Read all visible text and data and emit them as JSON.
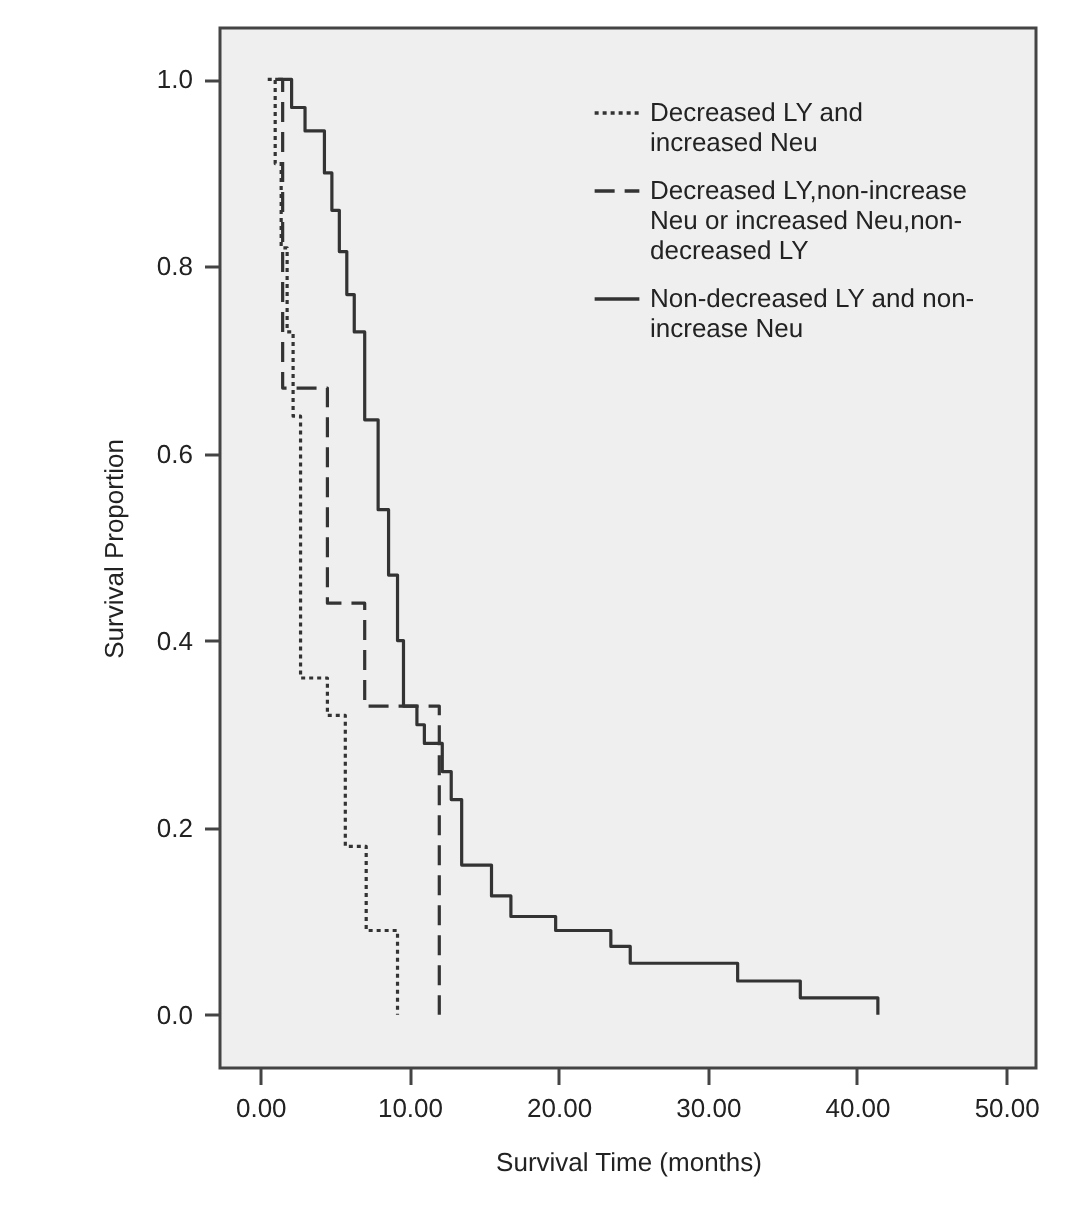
{
  "chart_data": {
    "type": "step",
    "xlabel": "Survival Time (months)",
    "ylabel": "Survival Proportion",
    "xlim": [
      -2.7,
      52
    ],
    "ylim": [
      -0.057,
      1.055
    ],
    "xticks": [
      {
        "value": 0,
        "label": "0.00"
      },
      {
        "value": 10,
        "label": "10.00"
      },
      {
        "value": 20,
        "label": "20.00"
      },
      {
        "value": 30,
        "label": "30.00"
      },
      {
        "value": 40,
        "label": "40.00"
      },
      {
        "value": 50,
        "label": "50.00"
      }
    ],
    "yticks": [
      {
        "value": 0,
        "label": "0.0"
      },
      0.2,
      0.4,
      0.6,
      0.8,
      {
        "value": 1,
        "label": "1.0"
      }
    ],
    "grid": false,
    "legend": "top right",
    "series": [
      {
        "name": "Decreased LY and increased Neu",
        "color": "#333333",
        "line_style": "dotted",
        "x": [
          0.5,
          1.0,
          1.4,
          1.8,
          2.2,
          2.7,
          4.5,
          5.7,
          7.1,
          9.2
        ],
        "values": [
          1.0,
          0.91,
          0.82,
          0.73,
          0.64,
          0.36,
          0.32,
          0.18,
          0.09,
          0.0
        ]
      },
      {
        "name": "Decreased LY,non-increase Neu or increased Neu,non-decreased LY",
        "color": "#333333",
        "line_style": "dashed",
        "x": [
          1.0,
          1.5,
          4.5,
          7.0,
          12.0
        ],
        "values": [
          1.0,
          0.67,
          0.44,
          0.33,
          0.0
        ]
      },
      {
        "name": "Non-decreased LY and non- increase Neu",
        "color": "#333333",
        "line_style": "solid",
        "x": [
          1.2,
          2.1,
          3.0,
          4.3,
          4.8,
          5.3,
          5.8,
          6.3,
          7.0,
          7.9,
          8.6,
          9.2,
          9.6,
          10.5,
          11.0,
          12.2,
          12.8,
          13.5,
          15.5,
          16.8,
          19.8,
          23.5,
          24.8,
          32.0,
          36.2,
          41.4
        ],
        "values": [
          1.0,
          0.97,
          0.945,
          0.9,
          0.86,
          0.816,
          0.77,
          0.73,
          0.636,
          0.54,
          0.47,
          0.4,
          0.33,
          0.31,
          0.29,
          0.26,
          0.23,
          0.16,
          0.127,
          0.105,
          0.09,
          0.073,
          0.055,
          0.036,
          0.018,
          0.0
        ]
      }
    ]
  }
}
